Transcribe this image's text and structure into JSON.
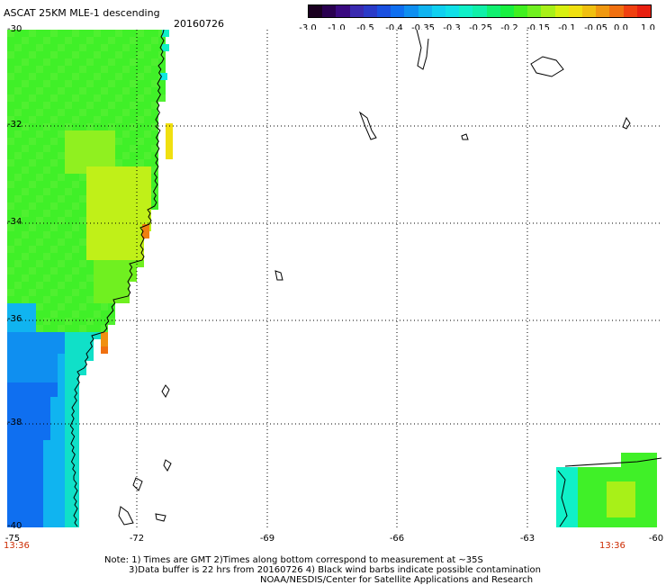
{
  "header": {
    "title": "ASCAT 25KM MLE-1 descending",
    "date": "20160726"
  },
  "colorbar": {
    "ticks": [
      "-3.0",
      "-1.0",
      "-0.5",
      "-0.4",
      "-0.35",
      "-0.3",
      "-0.25",
      "-0.2",
      "-0.15",
      "-0.1",
      "-0.05",
      "0.0",
      "1.0"
    ],
    "colors": [
      "#1a0020",
      "#3a0a80",
      "#2a3ac8",
      "#0f6ff0",
      "#10b4f0",
      "#10e0e8",
      "#10f0a8",
      "#18f040",
      "#70f020",
      "#d8f010",
      "#f0c010",
      "#f07010",
      "#e82010"
    ]
  },
  "map": {
    "lat_labels": [
      "-30",
      "-32",
      "-34",
      "-36",
      "-38",
      "-40"
    ],
    "lon_labels": [
      "-75",
      "-72",
      "-69",
      "-66",
      "-63",
      "-60"
    ],
    "time_labels": [
      "13:36",
      "13:36"
    ],
    "grid": true
  },
  "notes": {
    "line1": "Note: 1) Times are GMT 2)Times along bottom correspond to measurement at ~35S",
    "line2": "3)Data buffer is 22 hrs from 20160726 4) Black wind barbs indicate possible contamination",
    "line3": "NOAA/NESDIS/Center for Satellite Applications and Research"
  }
}
